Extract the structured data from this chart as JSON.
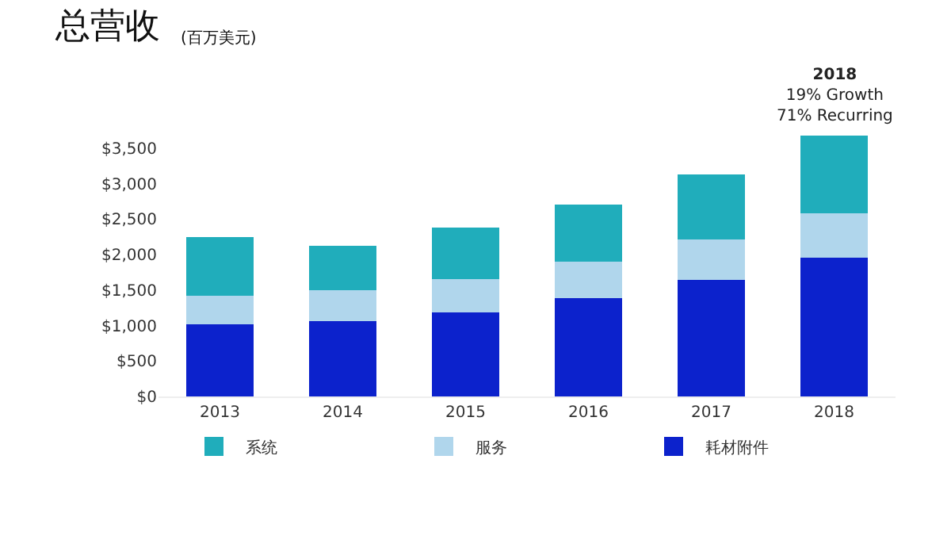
{
  "chart_data": {
    "type": "bar",
    "title": "总营收",
    "subtitle": "(百万美元)",
    "stacked": true,
    "categories": [
      "2013",
      "2014",
      "2015",
      "2016",
      "2017",
      "2018"
    ],
    "series": [
      {
        "name": "耗材附件",
        "color": "#0c22cc",
        "values": [
          1020,
          1060,
          1190,
          1390,
          1640,
          1960
        ]
      },
      {
        "name": "服务",
        "color": "#b0d6ec",
        "values": [
          400,
          440,
          460,
          510,
          570,
          620
        ]
      },
      {
        "name": "系统",
        "color": "#20adbb",
        "values": [
          830,
          620,
          730,
          800,
          920,
          1100
        ]
      }
    ],
    "ylim": [
      0,
      3800
    ],
    "yticks": [
      {
        "value": 0,
        "label": "$0"
      },
      {
        "value": 500,
        "label": "$500"
      },
      {
        "value": 1000,
        "label": "$1,000"
      },
      {
        "value": 1500,
        "label": "$1,500"
      },
      {
        "value": 2000,
        "label": "$2,000"
      },
      {
        "value": 2500,
        "label": "$2,500"
      },
      {
        "value": 3000,
        "label": "$3,000"
      },
      {
        "value": 3500,
        "label": "$3,500"
      }
    ],
    "annotations": [
      {
        "text": "2018\n19% Growth\n71% Recurring",
        "x": "2018",
        "y": 3688
      }
    ],
    "legend": "bottom"
  }
}
